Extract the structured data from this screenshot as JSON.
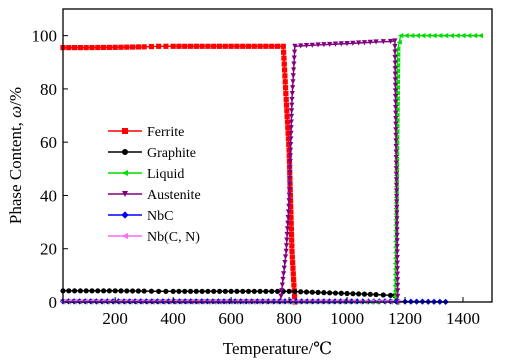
{
  "chart_data": {
    "type": "line",
    "xlabel": "Temperature/℃",
    "ylabel_text": "Phase Content, ",
    "ylabel_symbol": "ω",
    "ylabel_unit": "/%",
    "xlim": [
      20,
      1500
    ],
    "ylim": [
      0,
      110
    ],
    "xticks": [
      200,
      400,
      600,
      800,
      1000,
      1200,
      1400
    ],
    "yticks": [
      0,
      20,
      40,
      60,
      80,
      100
    ],
    "grid": false,
    "legend_position": "center-left",
    "series": [
      {
        "name": "Ferrite",
        "color": "#ff0000",
        "marker": "square",
        "points": [
          [
            20,
            95.5
          ],
          [
            100,
            95.5
          ],
          [
            200,
            95.6
          ],
          [
            300,
            95.8
          ],
          [
            350,
            96
          ],
          [
            400,
            96
          ],
          [
            500,
            96
          ],
          [
            600,
            96
          ],
          [
            700,
            96
          ],
          [
            760,
            96
          ],
          [
            780,
            96
          ],
          [
            790,
            76
          ],
          [
            800,
            57
          ],
          [
            805,
            38
          ],
          [
            810,
            19
          ],
          [
            820,
            0
          ]
        ]
      },
      {
        "name": "Graphite",
        "color": "#000000",
        "marker": "circle",
        "points": [
          [
            20,
            4.2
          ],
          [
            100,
            4.2
          ],
          [
            200,
            4.2
          ],
          [
            300,
            4.1
          ],
          [
            350,
            4
          ],
          [
            400,
            4
          ],
          [
            500,
            4
          ],
          [
            600,
            4
          ],
          [
            700,
            4
          ],
          [
            760,
            4
          ],
          [
            800,
            4
          ],
          [
            900,
            3.6
          ],
          [
            1000,
            3.2
          ],
          [
            1100,
            2.8
          ],
          [
            1150,
            2.5
          ],
          [
            1165,
            2.4
          ],
          [
            1175,
            0
          ]
        ]
      },
      {
        "name": "Liquid",
        "color": "#00dd00",
        "marker": "triangle-left",
        "points": [
          [
            20,
            0
          ],
          [
            1100,
            0
          ],
          [
            1150,
            0
          ],
          [
            1165,
            0
          ],
          [
            1175,
            95
          ],
          [
            1185,
            100
          ],
          [
            1300,
            100
          ],
          [
            1400,
            100
          ],
          [
            1460,
            100
          ]
        ]
      },
      {
        "name": "Austenite",
        "color": "#800080",
        "marker": "triangle-down",
        "points": [
          [
            20,
            0
          ],
          [
            700,
            0
          ],
          [
            770,
            0
          ],
          [
            790,
            19
          ],
          [
            800,
            38
          ],
          [
            805,
            57
          ],
          [
            810,
            76
          ],
          [
            820,
            96
          ],
          [
            900,
            96.5
          ],
          [
            1000,
            97
          ],
          [
            1100,
            97.6
          ],
          [
            1150,
            97.8
          ],
          [
            1165,
            98
          ],
          [
            1175,
            0
          ]
        ]
      },
      {
        "name": "NbC",
        "color": "#0000ff",
        "marker": "diamond",
        "points": [
          [
            20,
            0.25
          ],
          [
            1150,
            0.25
          ],
          [
            1170,
            0.2
          ],
          [
            1200,
            0.15
          ],
          [
            1300,
            0.1
          ],
          [
            1340,
            0.05
          ]
        ]
      },
      {
        "name": "Nb(C, N)",
        "color": "#ff66ff",
        "marker": "triangle-left",
        "points": [
          [
            20,
            0.2
          ],
          [
            600,
            0.2
          ],
          [
            1000,
            0.2
          ],
          [
            1150,
            0.15
          ],
          [
            1175,
            0
          ]
        ]
      }
    ]
  }
}
